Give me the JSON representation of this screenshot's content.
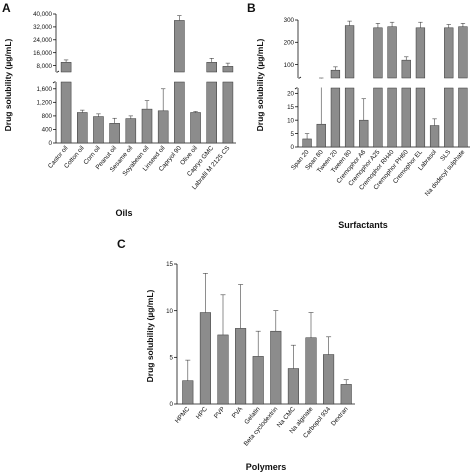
{
  "chart_data": [
    {
      "panel": "A",
      "type": "bar",
      "xlabel": "Oils",
      "ylabel": "Drug solubility (µg/mL)",
      "categories": [
        "Castor oil",
        "Cotton oil",
        "Corn oil",
        "Peanut oil",
        "Sesame oil",
        "Soyabean oil",
        "Linseed oil",
        "Capryol 90",
        "Olive oil",
        "Capryo GMC",
        "Labrafil M 2125 CS"
      ],
      "values": [
        10000,
        900,
        780,
        580,
        720,
        1000,
        950,
        36000,
        900,
        10000,
        7500
      ],
      "errors": [
        1500,
        70,
        80,
        150,
        80,
        250,
        650,
        3000,
        30,
        2500,
        2000
      ],
      "y_broken": true,
      "ylim_lower": [
        0,
        1800
      ],
      "ylim_upper": [
        4000,
        40000
      ],
      "ticks_lower": [
        0,
        400,
        800,
        1200,
        1600
      ],
      "ticks_upper": [
        8000,
        16000,
        24000,
        32000,
        40000
      ],
      "tick_labels_lower": [
        "0",
        "400",
        "800",
        "1,200",
        "1,600"
      ],
      "tick_labels_upper": [
        "8,000",
        "16,000",
        "24,000",
        "32,000",
        "40,000"
      ]
    },
    {
      "panel": "B",
      "type": "bar",
      "xlabel": "Surfactants",
      "ylabel": "Drug solubility (µg/mL)",
      "categories": [
        "Span 20",
        "Span 80",
        "Tween 20",
        "Tween 80",
        "Cremophor A6",
        "Cremophor A25",
        "Cremophor RH40",
        "Cremophor PH60",
        "Cremophor EL",
        "Labrasol",
        "SLS",
        "Na dodecyl sulphate"
      ],
      "values": [
        3,
        8.5,
        75,
        275,
        10,
        265,
        270,
        120,
        265,
        8,
        265,
        270
      ],
      "errors": [
        2,
        14,
        15,
        20,
        8,
        20,
        20,
        15,
        25,
        2.5,
        15,
        15
      ],
      "y_broken": true,
      "ylim_lower": [
        0,
        22
      ],
      "ylim_upper": [
        40,
        300
      ],
      "ticks_lower": [
        0,
        5,
        10,
        15,
        20
      ],
      "ticks_upper": [
        100,
        200,
        300
      ],
      "tick_labels_lower": [
        "0",
        "5",
        "10",
        "15",
        "20"
      ],
      "tick_labels_upper": [
        "100",
        "200",
        "300"
      ]
    },
    {
      "panel": "C",
      "type": "bar",
      "xlabel": "Polymers",
      "ylabel": "Drug solubility (µg/mL)",
      "categories": [
        "HPMC",
        "HPC",
        "PVP",
        "PVA",
        "Gelatin",
        "Beta cyclodextrin",
        "Na CMC",
        "Na alginate",
        "Carbopol 934",
        "Dextran"
      ],
      "values": [
        2.5,
        9.8,
        7.4,
        8.1,
        5.1,
        7.8,
        3.8,
        7.1,
        5.3,
        2.1
      ],
      "errors": [
        2.2,
        4.2,
        4.3,
        4.7,
        2.7,
        2.2,
        2.5,
        2.7,
        1.9,
        0.5
      ],
      "ylim": [
        0,
        15
      ],
      "ticks": [
        0,
        5,
        10,
        15
      ],
      "tick_labels": [
        "0",
        "5",
        "10",
        "15"
      ]
    }
  ]
}
